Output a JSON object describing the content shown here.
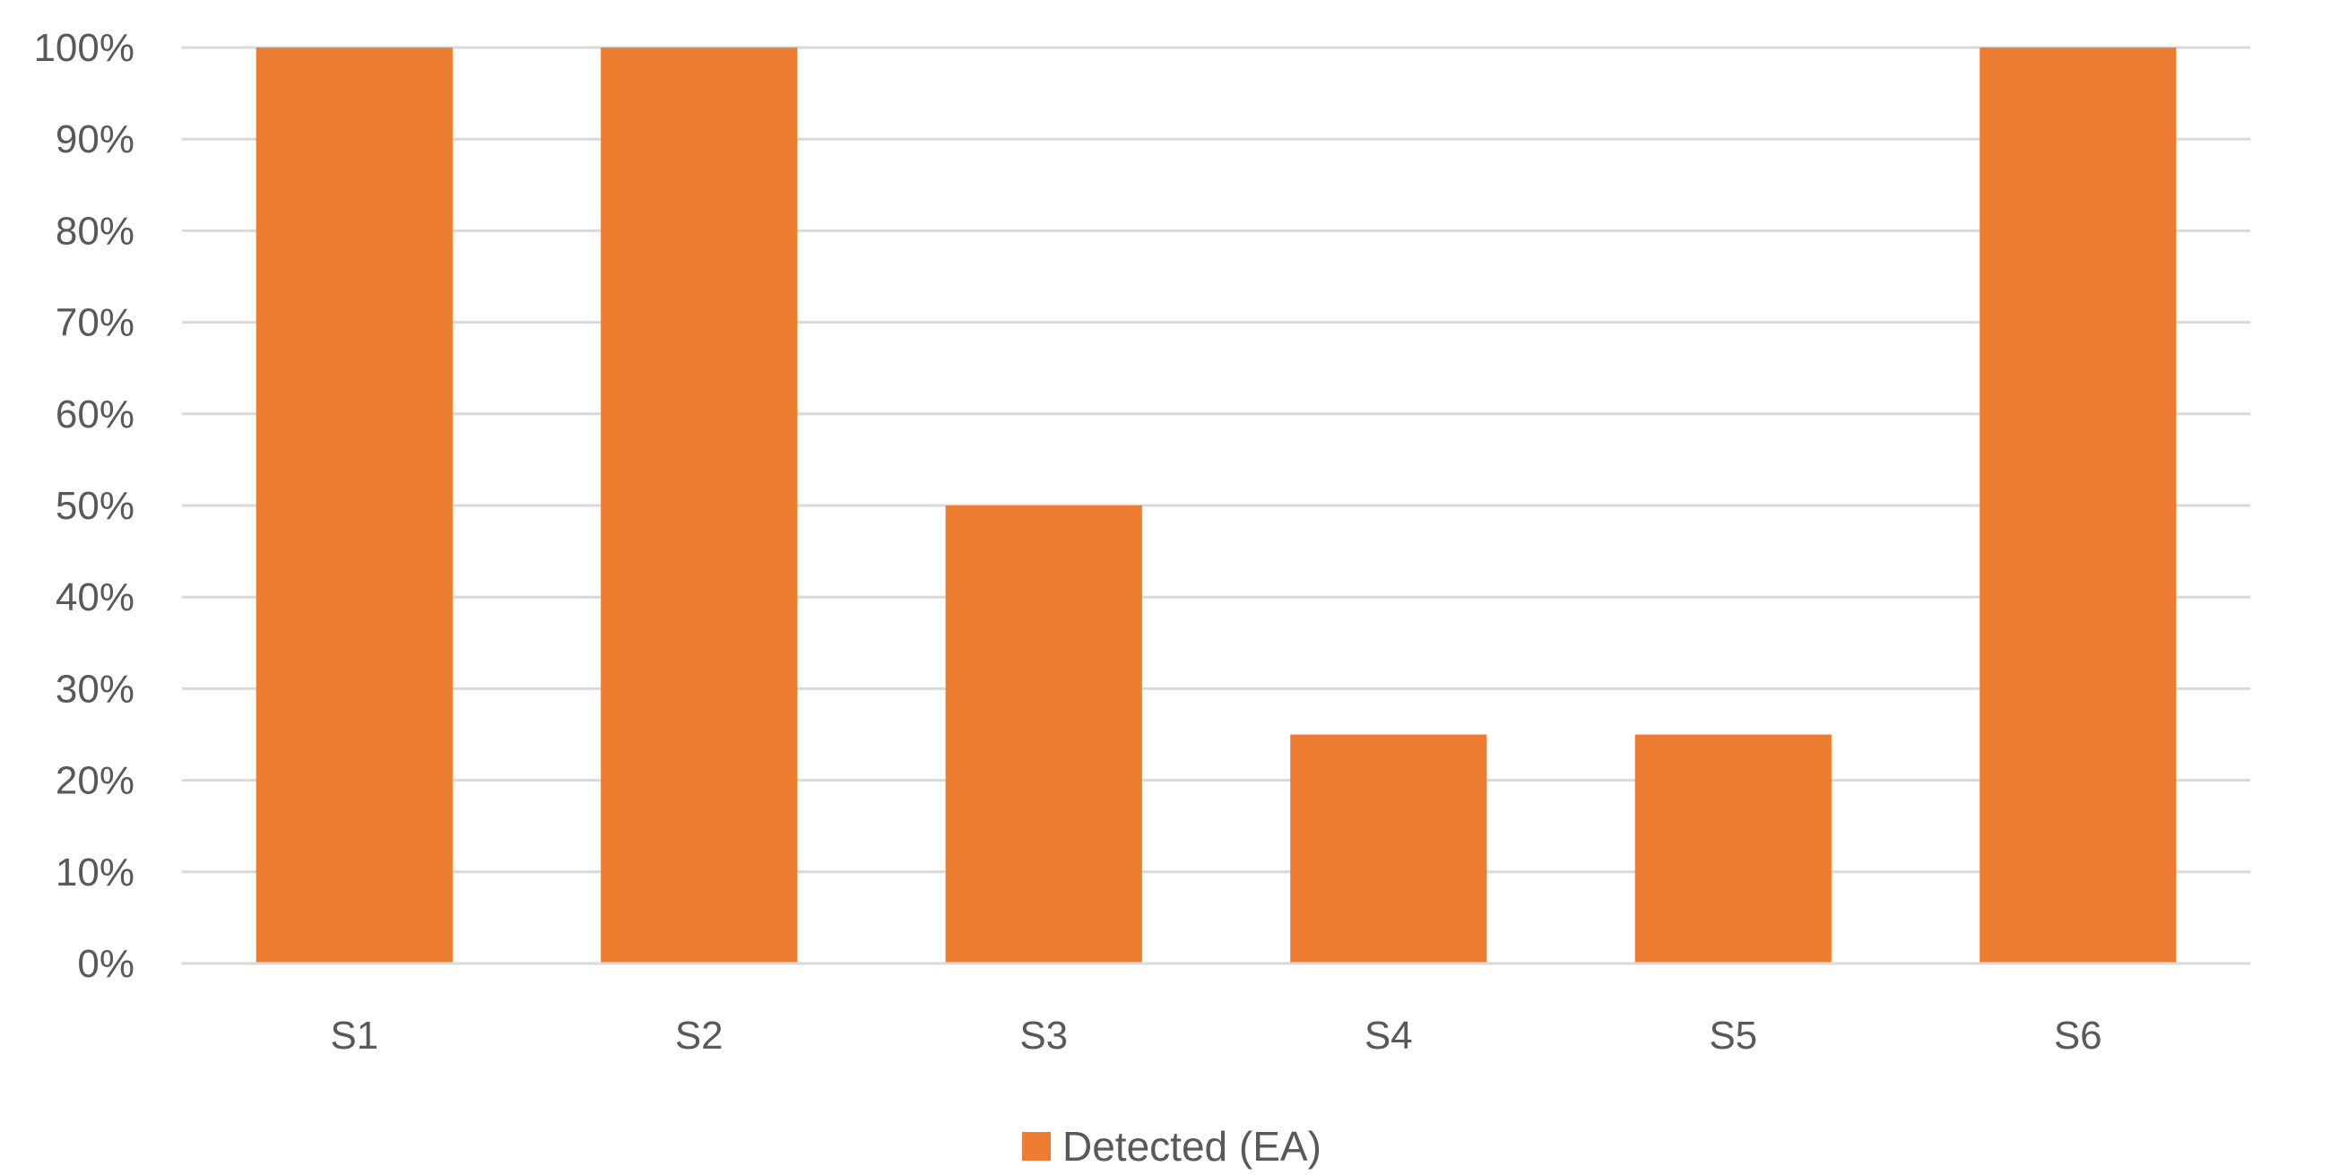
{
  "chart_data": {
    "type": "bar",
    "categories": [
      "S1",
      "S2",
      "S3",
      "S4",
      "S5",
      "S6"
    ],
    "series": [
      {
        "name": "Detected (EA)",
        "values": [
          100,
          100,
          50,
          25,
          25,
          100
        ],
        "color": "#ED7D31"
      }
    ],
    "title": "",
    "xlabel": "",
    "ylabel": "",
    "ylim": [
      0,
      100
    ],
    "yticks": [
      "0%",
      "10%",
      "20%",
      "30%",
      "40%",
      "50%",
      "60%",
      "70%",
      "80%",
      "90%",
      "100%"
    ],
    "grid": true,
    "legend": "bottom"
  }
}
